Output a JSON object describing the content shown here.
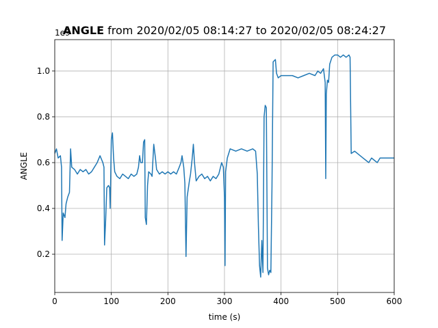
{
  "chart_data": {
    "type": "line",
    "title_bold": "ANGLE",
    "title": " from 2020/02/05 08:14:27 to 2020/02/05 08:24:27",
    "xlabel": "time (s)",
    "ylabel": "ANGLE",
    "y_offset_label": "1e9",
    "xlim": [
      0,
      600
    ],
    "ylim": [
      0.033,
      1.137
    ],
    "xticks": [
      0,
      100,
      200,
      300,
      400,
      500,
      600
    ],
    "yticks": [
      0.2,
      0.4,
      0.6,
      0.8,
      {
        "value": 1.0,
        "label": "1.0"
      }
    ],
    "grid": true,
    "series": [
      {
        "name": "ANGLE",
        "color": "#1f77b4",
        "x": [
          0,
          3,
          6,
          10,
          12,
          13,
          15,
          18,
          20,
          23,
          26,
          28,
          30,
          35,
          40,
          45,
          50,
          55,
          60,
          65,
          70,
          75,
          80,
          85,
          87,
          88,
          90,
          92,
          95,
          97,
          98,
          100,
          102,
          104,
          106,
          110,
          115,
          120,
          125,
          130,
          135,
          140,
          145,
          148,
          150,
          152,
          155,
          157,
          159,
          160,
          162,
          164,
          166,
          170,
          172,
          175,
          178,
          180,
          185,
          190,
          195,
          200,
          205,
          210,
          215,
          220,
          223,
          225,
          228,
          230,
          232,
          234,
          238,
          240,
          243,
          245,
          247,
          250,
          255,
          260,
          265,
          270,
          275,
          280,
          285,
          290,
          295,
          298,
          300,
          301,
          302,
          305,
          310,
          320,
          330,
          340,
          350,
          355,
          358,
          360,
          362,
          364,
          366,
          368,
          370,
          372,
          374,
          376,
          378,
          380,
          382,
          384,
          386,
          390,
          392,
          395,
          400,
          410,
          420,
          430,
          440,
          450,
          460,
          465,
          470,
          475,
          478,
          479,
          480,
          482,
          484,
          486,
          490,
          495,
          500,
          505,
          510,
          515,
          520,
          522,
          524,
          530,
          540,
          545,
          550,
          555,
          560,
          565,
          570,
          575,
          600
        ],
        "values": [
          0.64,
          0.66,
          0.62,
          0.63,
          0.58,
          0.26,
          0.38,
          0.36,
          0.42,
          0.45,
          0.47,
          0.66,
          0.58,
          0.57,
          0.55,
          0.57,
          0.56,
          0.57,
          0.55,
          0.56,
          0.58,
          0.6,
          0.63,
          0.6,
          0.58,
          0.24,
          0.35,
          0.49,
          0.5,
          0.49,
          0.4,
          0.7,
          0.73,
          0.62,
          0.56,
          0.54,
          0.53,
          0.55,
          0.54,
          0.53,
          0.55,
          0.54,
          0.55,
          0.58,
          0.63,
          0.6,
          0.6,
          0.69,
          0.7,
          0.36,
          0.33,
          0.5,
          0.56,
          0.55,
          0.54,
          0.68,
          0.62,
          0.57,
          0.55,
          0.56,
          0.55,
          0.56,
          0.55,
          0.56,
          0.55,
          0.58,
          0.6,
          0.63,
          0.58,
          0.51,
          0.19,
          0.45,
          0.52,
          0.55,
          0.62,
          0.68,
          0.6,
          0.52,
          0.54,
          0.55,
          0.53,
          0.54,
          0.52,
          0.54,
          0.53,
          0.55,
          0.6,
          0.58,
          0.45,
          0.15,
          0.56,
          0.62,
          0.66,
          0.65,
          0.66,
          0.65,
          0.66,
          0.65,
          0.55,
          0.32,
          0.15,
          0.1,
          0.26,
          0.12,
          0.8,
          0.85,
          0.84,
          0.14,
          0.11,
          0.13,
          0.12,
          0.5,
          1.04,
          1.05,
          0.99,
          0.97,
          0.98,
          0.98,
          0.98,
          0.97,
          0.98,
          0.99,
          0.98,
          1.0,
          0.99,
          1.01,
          0.95,
          0.53,
          0.9,
          0.96,
          0.95,
          1.03,
          1.06,
          1.07,
          1.07,
          1.06,
          1.07,
          1.06,
          1.07,
          1.06,
          0.64,
          0.65,
          0.63,
          0.62,
          0.61,
          0.6,
          0.62,
          0.61,
          0.6,
          0.62,
          0.62
        ]
      }
    ]
  }
}
